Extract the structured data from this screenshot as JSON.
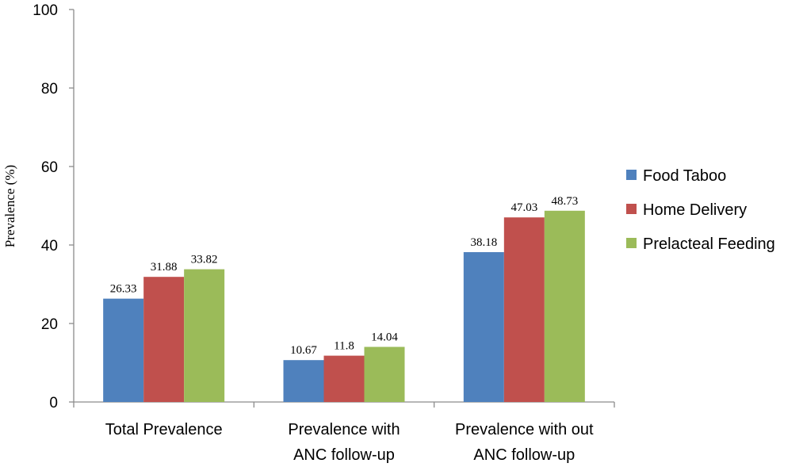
{
  "chart_data": {
    "type": "bar",
    "title": "",
    "xlabel": "",
    "ylabel": "Prevalence (%)",
    "ylim": [
      0,
      100
    ],
    "yticks": [
      0,
      20,
      40,
      60,
      80,
      100
    ],
    "grid": false,
    "legend_position": "right",
    "categories": [
      [
        "Total Prevalence"
      ],
      [
        "Prevalence with",
        "ANC follow-up"
      ],
      [
        "Prevalence with out",
        "ANC follow-up"
      ]
    ],
    "series": [
      {
        "name": "Food Taboo",
        "color": "#4f81bd",
        "values": [
          26.33,
          10.67,
          38.18
        ]
      },
      {
        "name": "Home Delivery",
        "color": "#c0504d",
        "values": [
          31.88,
          11.8,
          47.03
        ]
      },
      {
        "name": "Prelacteal Feeding",
        "color": "#9bbb59",
        "values": [
          33.82,
          14.04,
          48.73
        ]
      }
    ]
  }
}
